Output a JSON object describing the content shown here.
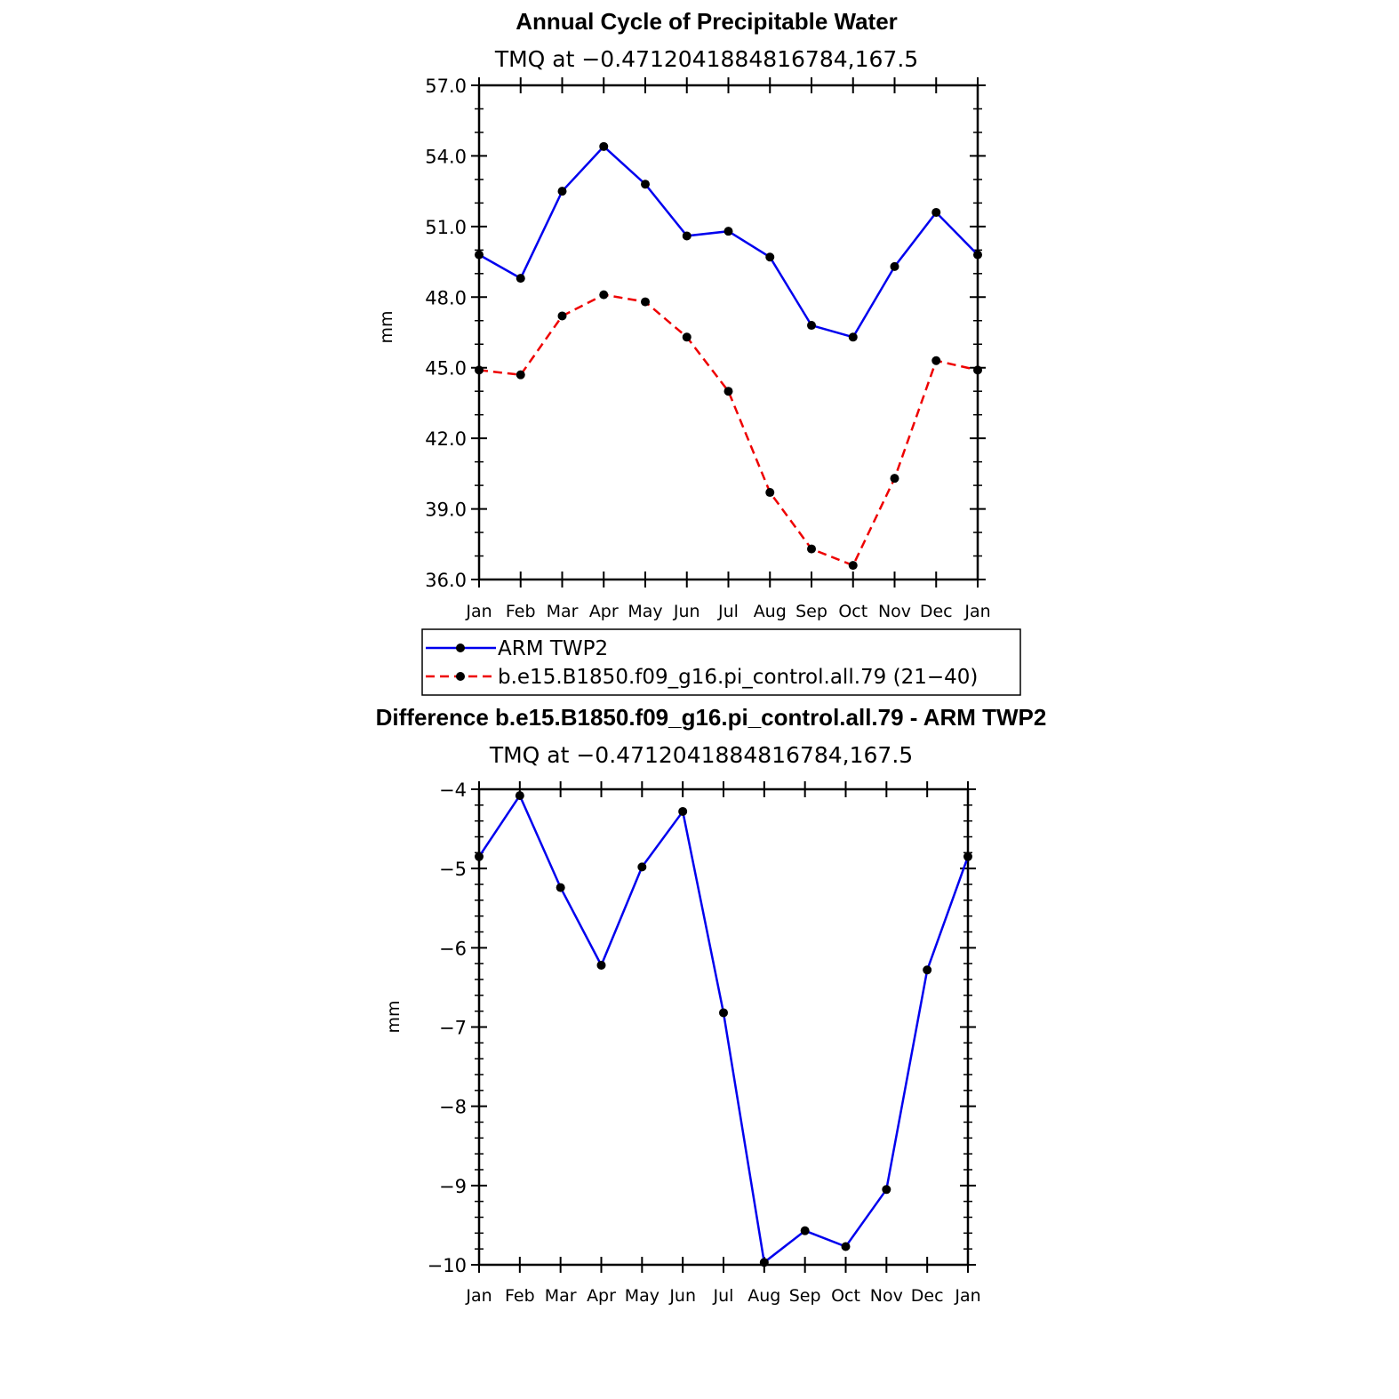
{
  "chart_data": [
    {
      "type": "line",
      "title": "Annual Cycle of Precipitable Water",
      "subtitle": "TMQ at −0.4712041884816784,167.5",
      "xlabel": "",
      "ylabel": "mm",
      "categories": [
        "Jan",
        "Feb",
        "Mar",
        "Apr",
        "May",
        "Jun",
        "Jul",
        "Aug",
        "Sep",
        "Oct",
        "Nov",
        "Dec",
        "Jan"
      ],
      "ylim": [
        36.0,
        57.0
      ],
      "yticks": [
        "57.0",
        "54.0",
        "51.0",
        "48.0",
        "45.0",
        "42.0",
        "39.0",
        "36.0"
      ],
      "series": [
        {
          "name": "ARM TWP2",
          "color": "#0000ee",
          "style": "solid",
          "values": [
            49.8,
            48.8,
            52.5,
            54.4,
            52.8,
            50.6,
            50.8,
            49.7,
            46.8,
            46.3,
            49.3,
            51.6,
            49.8
          ]
        },
        {
          "name": "b.e15.B1850.f09_g16.pi_control.all.79 (21−40)",
          "color": "#ee0000",
          "style": "dashed",
          "values": [
            44.9,
            44.7,
            47.2,
            48.1,
            47.8,
            46.3,
            44.0,
            39.7,
            37.3,
            36.6,
            40.3,
            45.3,
            44.9
          ]
        }
      ],
      "legend_position": "below"
    },
    {
      "type": "line",
      "title": "Difference b.e15.B1850.f09_g16.pi_control.all.79 - ARM TWP2",
      "subtitle": "TMQ at −0.4712041884816784,167.5",
      "xlabel": "",
      "ylabel": "mm",
      "categories": [
        "Jan",
        "Feb",
        "Mar",
        "Apr",
        "May",
        "Jun",
        "Jul",
        "Aug",
        "Sep",
        "Oct",
        "Nov",
        "Dec",
        "Jan"
      ],
      "ylim": [
        -10,
        -4
      ],
      "yticks": [
        "−4",
        "−5",
        "−6",
        "−7",
        "−8",
        "−9",
        "−10"
      ],
      "series": [
        {
          "name": "Difference",
          "color": "#0000ee",
          "style": "solid",
          "values": [
            -4.85,
            -4.08,
            -5.24,
            -6.22,
            -4.98,
            -4.28,
            -6.82,
            -9.97,
            -9.57,
            -9.77,
            -9.05,
            -6.28,
            -4.85
          ]
        }
      ]
    }
  ]
}
